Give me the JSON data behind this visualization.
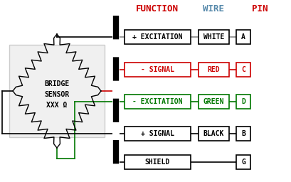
{
  "title_function": "FUNCTION",
  "title_wire": "WIRE",
  "title_pin": "PIN",
  "title_color": "#cc0000",
  "header_wire_color": "#5588aa",
  "header_pin_color": "#cc0000",
  "rows": [
    {
      "function": "+ EXCITATION",
      "wire": "WHITE",
      "pin": "A",
      "color": "#000000",
      "line_color": "#888888"
    },
    {
      "function": "- SIGNAL",
      "wire": "RED",
      "pin": "C",
      "color": "#cc0000",
      "line_color": "#cc0000"
    },
    {
      "function": "- EXCITATION",
      "wire": "GREEN",
      "pin": "D",
      "color": "#007700",
      "line_color": "#007700"
    },
    {
      "function": "+ SIGNAL",
      "wire": "BLACK",
      "pin": "B",
      "color": "#000000",
      "line_color": "#000000"
    },
    {
      "function": "SHIELD",
      "wire": "",
      "pin": "G",
      "color": "#000000",
      "line_color": "#000000"
    }
  ],
  "bg_color": "#ffffff",
  "figw": 4.1,
  "figh": 2.56,
  "dpi": 100
}
